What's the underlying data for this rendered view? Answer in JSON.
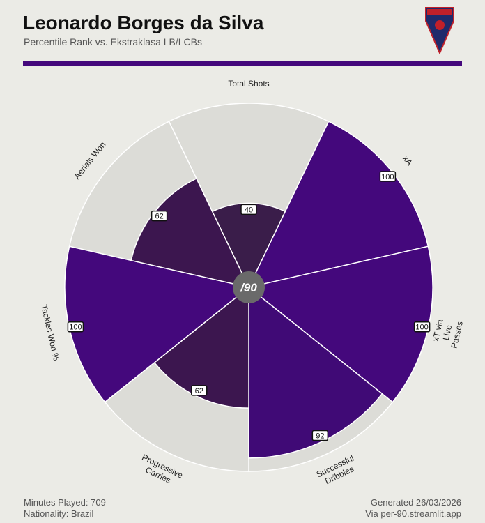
{
  "chart_data": {
    "type": "pizza",
    "title": "Leonardo Borges da Silva",
    "subtitle": "Percentile Rank vs. Ekstraklasa LB/LCBs",
    "categories": [
      "Total Shots",
      "xA",
      "xT via\nLive Passes",
      "Successful\nDribbles",
      "Progressive\nCarries",
      "Tackles Won %",
      "Aerials Won"
    ],
    "values": [
      40,
      100,
      100,
      92,
      62,
      100,
      62
    ],
    "colors": [
      "#3a1d4a",
      "#44087c",
      "#44087c",
      "#400a76",
      "#3c164f",
      "#44087c",
      "#3c164f"
    ],
    "background_color": "#dcdcd7",
    "ylim": [
      0,
      100
    ],
    "center_label": "/90"
  },
  "footer": {
    "minutes": "Minutes Played: 709",
    "nationality": "Nationality: Brazil",
    "generated": "Generated 26/03/2026",
    "source": "Via per-90.streamlit.app"
  }
}
